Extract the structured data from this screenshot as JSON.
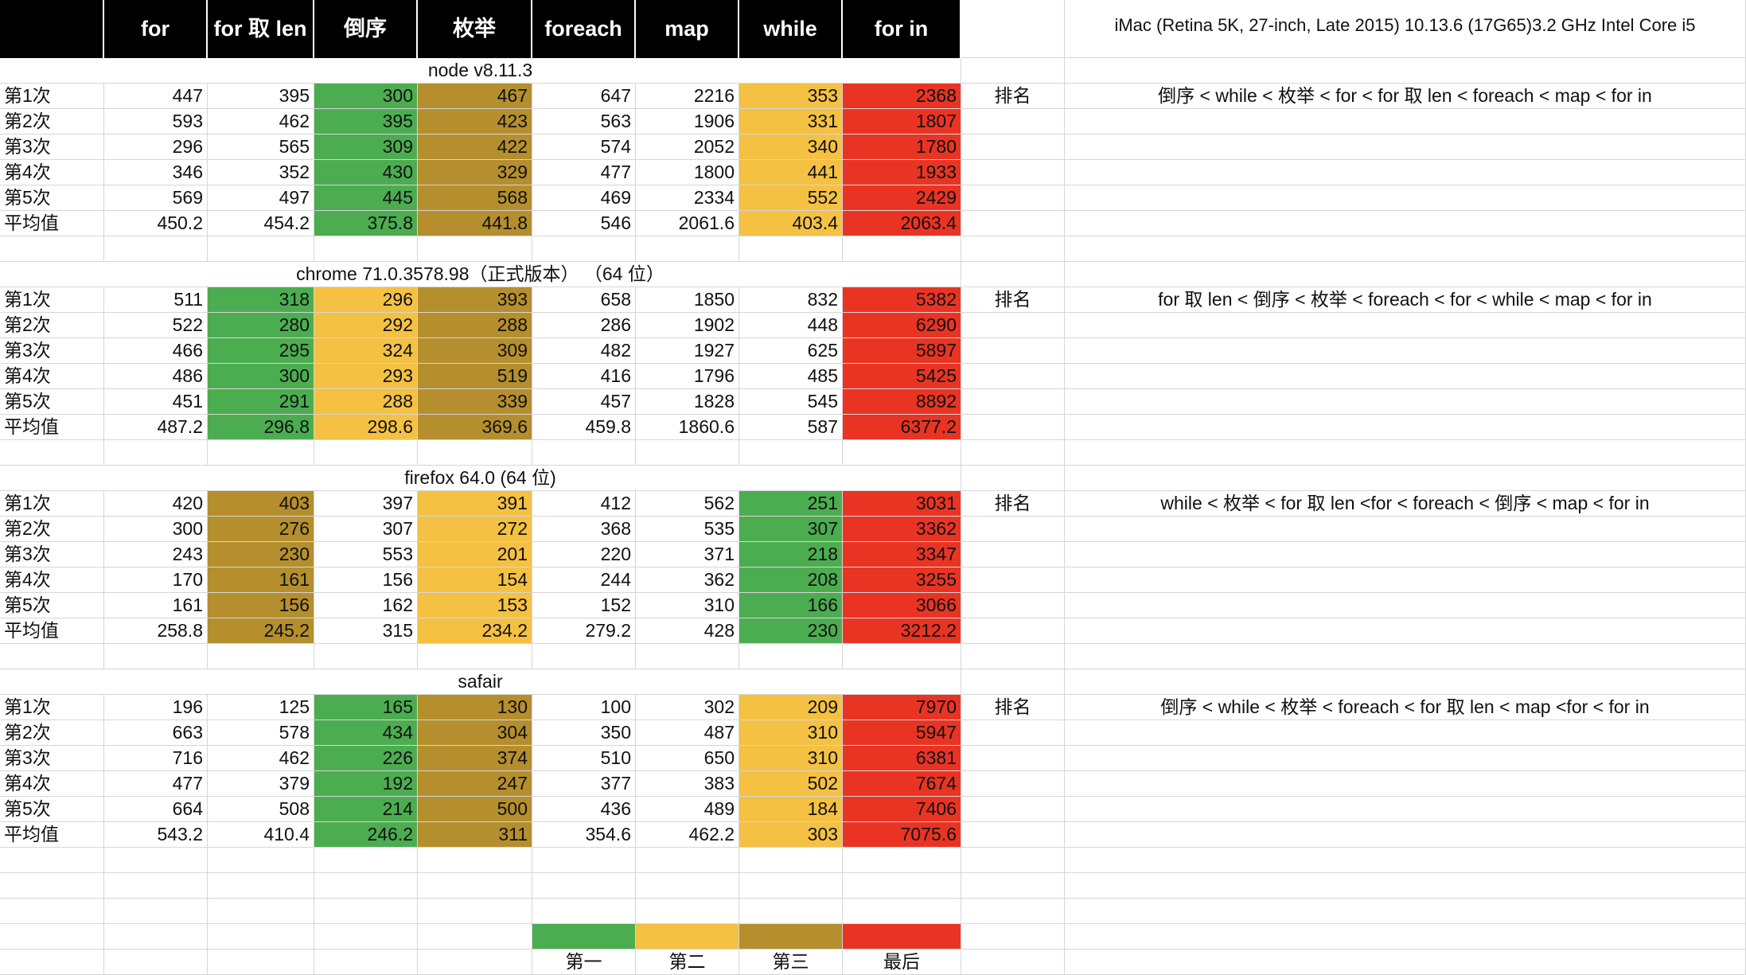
{
  "colors": {
    "first": "#4cad50",
    "second": "#f5c143",
    "third": "#b58f2e",
    "last": "#e93424"
  },
  "headers": [
    "",
    "for",
    "for 取 len",
    "倒序",
    "枚举",
    "foreach",
    "map",
    "while",
    "for in"
  ],
  "machine_info": "iMac (Retina 5K, 27-inch, Late 2015) 10.13.6 (17G65)3.2 GHz Intel Core i5",
  "ranking_label": "排名",
  "sections": [
    {
      "title": "node v8.11.3",
      "ranking": "倒序 < while < 枚举 < for < for 取 len < foreach < map < for in",
      "ranks": {
        "first": 3,
        "second": 7,
        "third": 4,
        "last": 8
      },
      "rows": [
        {
          "label": "第1次",
          "values": [
            "447",
            "395",
            "300",
            "467",
            "647",
            "2216",
            "353",
            "2368"
          ]
        },
        {
          "label": "第2次",
          "values": [
            "593",
            "462",
            "395",
            "423",
            "563",
            "1906",
            "331",
            "1807"
          ]
        },
        {
          "label": "第3次",
          "values": [
            "296",
            "565",
            "309",
            "422",
            "574",
            "2052",
            "340",
            "1780"
          ]
        },
        {
          "label": "第4次",
          "values": [
            "346",
            "352",
            "430",
            "329",
            "477",
            "1800",
            "441",
            "1933"
          ]
        },
        {
          "label": "第5次",
          "values": [
            "569",
            "497",
            "445",
            "568",
            "469",
            "2334",
            "552",
            "2429"
          ]
        },
        {
          "label": "平均值",
          "values": [
            "450.2",
            "454.2",
            "375.8",
            "441.8",
            "546",
            "2061.6",
            "403.4",
            "2063.4"
          ]
        }
      ]
    },
    {
      "title": "chrome  71.0.3578.98（正式版本）  （64 位）",
      "ranking": "for 取 len < 倒序 < 枚举 < foreach < for  < while < map < for in",
      "ranks": {
        "first": 2,
        "second": 3,
        "third": 4,
        "last": 8
      },
      "rows": [
        {
          "label": "第1次",
          "values": [
            "511",
            "318",
            "296",
            "393",
            "658",
            "1850",
            "832",
            "5382"
          ]
        },
        {
          "label": "第2次",
          "values": [
            "522",
            "280",
            "292",
            "288",
            "286",
            "1902",
            "448",
            "6290"
          ]
        },
        {
          "label": "第3次",
          "values": [
            "466",
            "295",
            "324",
            "309",
            "482",
            "1927",
            "625",
            "5897"
          ]
        },
        {
          "label": "第4次",
          "values": [
            "486",
            "300",
            "293",
            "519",
            "416",
            "1796",
            "485",
            "5425"
          ]
        },
        {
          "label": "第5次",
          "values": [
            "451",
            "291",
            "288",
            "339",
            "457",
            "1828",
            "545",
            "8892"
          ]
        },
        {
          "label": "平均值",
          "values": [
            "487.2",
            "296.8",
            "298.6",
            "369.6",
            "459.8",
            "1860.6",
            "587",
            "6377.2"
          ]
        }
      ]
    },
    {
      "title": "firefox 64.0 (64 位)",
      "ranking": "while < 枚举 < for 取 len <for < foreach < 倒序 < map < for in",
      "ranks": {
        "first": 7,
        "second": 4,
        "third": 2,
        "last": 8
      },
      "rows": [
        {
          "label": "第1次",
          "values": [
            "420",
            "403",
            "397",
            "391",
            "412",
            "562",
            "251",
            "3031"
          ]
        },
        {
          "label": "第2次",
          "values": [
            "300",
            "276",
            "307",
            "272",
            "368",
            "535",
            "307",
            "3362"
          ]
        },
        {
          "label": "第3次",
          "values": [
            "243",
            "230",
            "553",
            "201",
            "220",
            "371",
            "218",
            "3347"
          ]
        },
        {
          "label": "第4次",
          "values": [
            "170",
            "161",
            "156",
            "154",
            "244",
            "362",
            "208",
            "3255"
          ]
        },
        {
          "label": "第5次",
          "values": [
            "161",
            "156",
            "162",
            "153",
            "152",
            "310",
            "166",
            "3066"
          ]
        },
        {
          "label": "平均值",
          "values": [
            "258.8",
            "245.2",
            "315",
            "234.2",
            "279.2",
            "428",
            "230",
            "3212.2"
          ]
        }
      ]
    },
    {
      "title": "safair",
      "ranking": "倒序 < while < 枚举 < foreach < for 取 len  < map <for  < for in",
      "ranks": {
        "first": 3,
        "second": 7,
        "third": 4,
        "last": 8
      },
      "rows": [
        {
          "label": "第1次",
          "values": [
            "196",
            "125",
            "165",
            "130",
            "100",
            "302",
            "209",
            "7970"
          ]
        },
        {
          "label": "第2次",
          "values": [
            "663",
            "578",
            "434",
            "304",
            "350",
            "487",
            "310",
            "5947"
          ]
        },
        {
          "label": "第3次",
          "values": [
            "716",
            "462",
            "226",
            "374",
            "510",
            "650",
            "310",
            "6381"
          ]
        },
        {
          "label": "第4次",
          "values": [
            "477",
            "379",
            "192",
            "247",
            "377",
            "383",
            "502",
            "7674"
          ]
        },
        {
          "label": "第5次",
          "values": [
            "664",
            "508",
            "214",
            "500",
            "436",
            "489",
            "184",
            "7406"
          ]
        },
        {
          "label": "平均值",
          "values": [
            "543.2",
            "410.4",
            "246.2",
            "311",
            "354.6",
            "462.2",
            "303",
            "7075.6"
          ]
        }
      ]
    }
  ],
  "legend": [
    {
      "label": "第一",
      "color_key": "first"
    },
    {
      "label": "第二",
      "color_key": "second"
    },
    {
      "label": "第三",
      "color_key": "third"
    },
    {
      "label": "最后",
      "color_key": "last"
    }
  ]
}
